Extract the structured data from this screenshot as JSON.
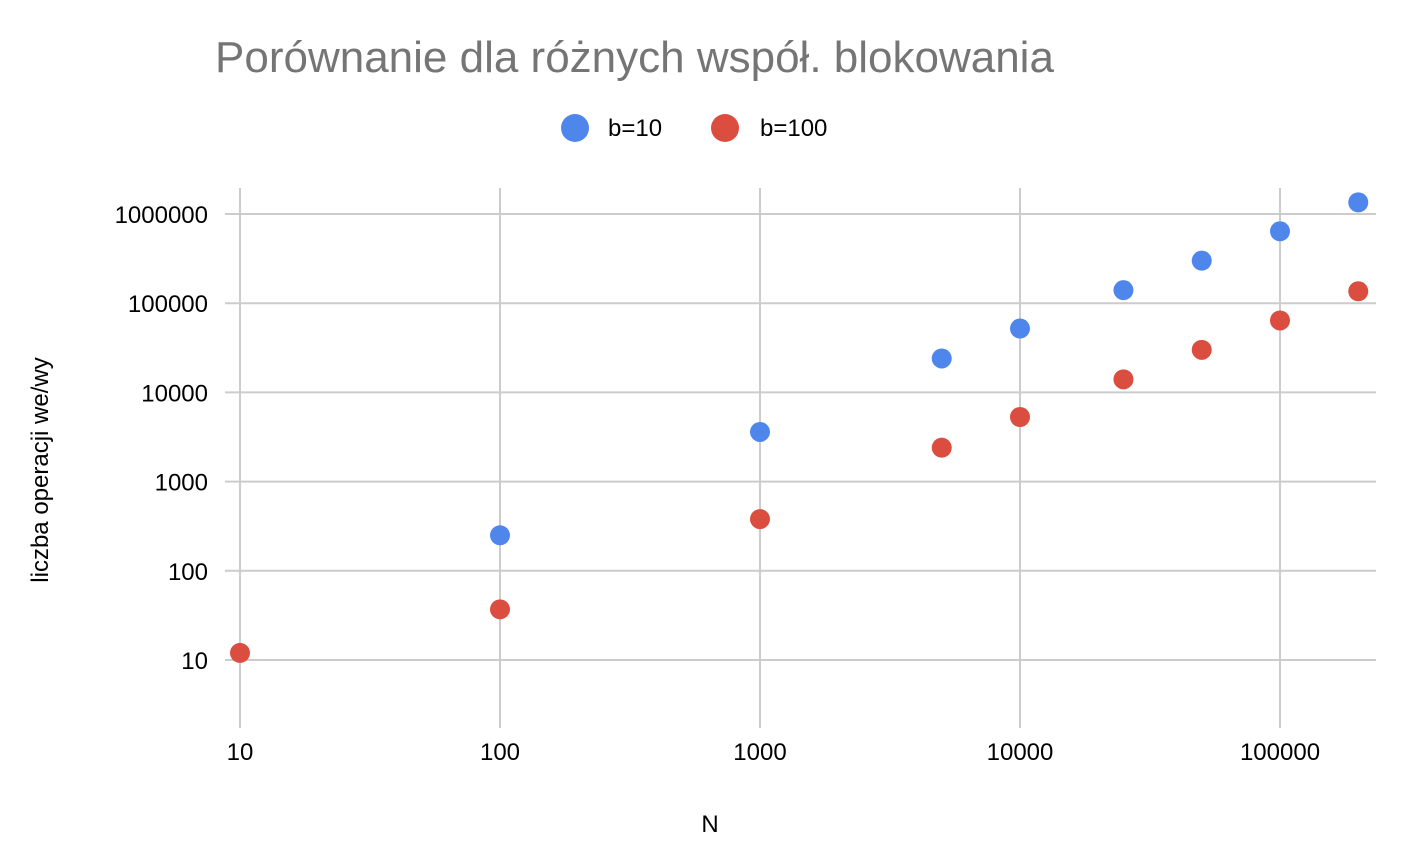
{
  "chart_data": {
    "type": "scatter",
    "title": "Porównanie dla różnych współ. blokowania",
    "xlabel": "N",
    "ylabel": "liczba operacji we/wy",
    "x_scale": "log",
    "y_scale": "log",
    "xlim": [
      10,
      200000
    ],
    "ylim": [
      1,
      2000000
    ],
    "x_ticks": [
      10,
      100,
      1000,
      10000,
      100000
    ],
    "x_tick_labels": [
      "10",
      "100",
      "1000",
      "10000",
      "100000"
    ],
    "y_ticks": [
      10,
      100,
      1000,
      10000,
      100000,
      1000000
    ],
    "y_tick_labels": [
      "10",
      "100",
      "1000",
      "10000",
      "100000",
      "1000000"
    ],
    "grid": true,
    "legend_position": "top",
    "series": [
      {
        "name": "b=10",
        "color": "#4F86EC",
        "points": [
          {
            "x": 100,
            "y": 250
          },
          {
            "x": 1000,
            "y": 3600
          },
          {
            "x": 5000,
            "y": 24000
          },
          {
            "x": 10000,
            "y": 52000
          },
          {
            "x": 25000,
            "y": 140000
          },
          {
            "x": 50000,
            "y": 300000
          },
          {
            "x": 100000,
            "y": 640000
          },
          {
            "x": 200000,
            "y": 1350000
          }
        ]
      },
      {
        "name": "b=100",
        "color": "#DB4E3F",
        "points": [
          {
            "x": 10,
            "y": 12
          },
          {
            "x": 100,
            "y": 37
          },
          {
            "x": 1000,
            "y": 380
          },
          {
            "x": 5000,
            "y": 2400
          },
          {
            "x": 10000,
            "y": 5300
          },
          {
            "x": 25000,
            "y": 14000
          },
          {
            "x": 50000,
            "y": 30000
          },
          {
            "x": 100000,
            "y": 64000
          },
          {
            "x": 200000,
            "y": 136000
          }
        ]
      }
    ]
  }
}
